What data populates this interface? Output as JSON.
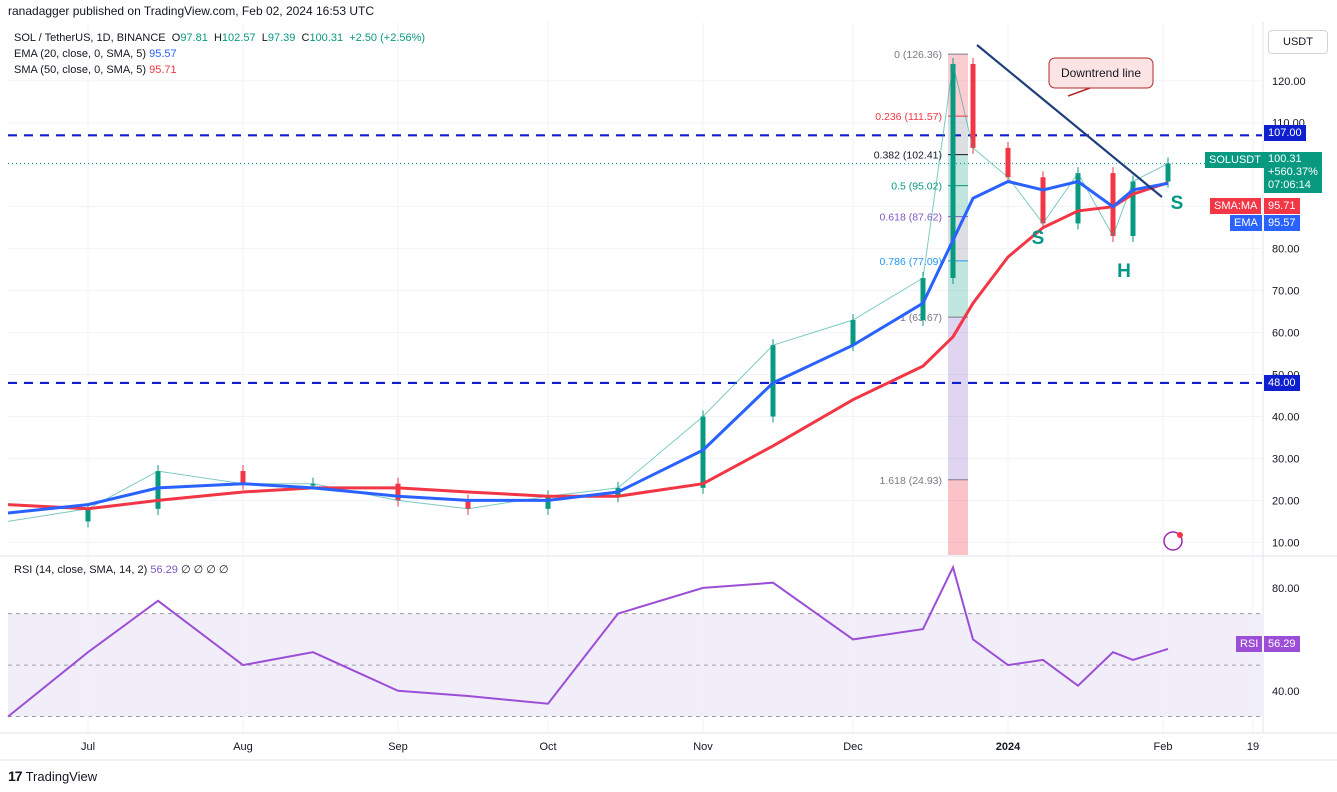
{
  "header": {
    "publisher_line": "ranadagger published on TradingView.com, Feb 02, 2024 16:53 UTC"
  },
  "legend": {
    "symbol_line": "SOL / TetherUS, 1D, BINANCE",
    "ohlc": {
      "o_label": "O",
      "o": "97.81",
      "h_label": "H",
      "h": "102.57",
      "l_label": "L",
      "l": "97.39",
      "c_label": "C",
      "c": "100.31",
      "chg": "+2.50 (+2.56%)"
    },
    "ema_label": "EMA (20, close, 0, SMA, 5)",
    "ema_value": "95.57",
    "sma_label": "SMA (50, close, 0, SMA, 5)",
    "sma_value": "95.71",
    "rsi_label": "RSI (14, close, SMA, 14, 2)",
    "rsi_value": "56.29",
    "rsi_extra": "∅ ∅ ∅ ∅"
  },
  "currency_button": "USDT",
  "price_tags": {
    "symbol_tag": "SOLUSDT",
    "last_price": "100.31",
    "change": "+560.37%",
    "countdown": "07:06:14",
    "sma_tag": "SMA:MA",
    "sma_val": "95.71",
    "ema_tag": "EMA",
    "ema_val": "95.57",
    "level_107": "107.00",
    "level_48": "48.00",
    "rsi_tag": "RSI",
    "rsi_val": "56.29"
  },
  "annotations": {
    "downtrend_label": "Downtrend line",
    "s_left": "S",
    "h": "H",
    "s_right": "S"
  },
  "fib_levels": [
    {
      "label": "0 (126.36)",
      "price": 126.36,
      "color": "#787b86"
    },
    {
      "label": "0.236 (111.57)",
      "price": 111.57,
      "color": "#f23645"
    },
    {
      "label": "0.382 (102.41)",
      "price": 102.41,
      "color": "#131722"
    },
    {
      "label": "0.5 (95.02)",
      "price": 95.02,
      "color": "#089981"
    },
    {
      "label": "0.618 (87.62)",
      "price": 87.62,
      "color": "#7e57c2"
    },
    {
      "label": "0.786 (77.09)",
      "price": 77.09,
      "color": "#2196f3"
    },
    {
      "label": "1 (63.67)",
      "price": 63.67,
      "color": "#787b86"
    },
    {
      "label": "1.618 (24.93)",
      "price": 24.93,
      "color": "#787b86"
    }
  ],
  "footer": {
    "brand": "TradingView",
    "logo": "17"
  },
  "colors": {
    "up": "#089981",
    "down": "#f23645",
    "ema": "#2962ff",
    "sma": "#f23645",
    "rsi": "#9c4fd6",
    "level": "#0d1fcf",
    "trend": "#1e3f7a"
  },
  "chart_data": {
    "type": "line",
    "title": "SOL / TetherUS, 1D, BINANCE",
    "x_ticks": [
      "Jul",
      "Aug",
      "Sep",
      "Oct",
      "Nov",
      "Dec",
      "2024",
      "Feb",
      "19"
    ],
    "y_ticks": [
      "10.00",
      "20.00",
      "30.00",
      "40.00",
      "50.00",
      "60.00",
      "70.00",
      "80.00",
      "90.00",
      "100.00",
      "110.00",
      "120.00"
    ],
    "rsi_ticks": [
      "40.00",
      "60.00",
      "80.00"
    ],
    "ylim": [
      7,
      134
    ],
    "rsi_ylim": [
      24,
      92
    ],
    "horizontal_levels": [
      107.0,
      48.0
    ],
    "x_dates": [
      "2024-06-15",
      "2024-07-01",
      "2024-07-15",
      "2024-08-01",
      "2024-08-15",
      "2024-09-01",
      "2024-09-15",
      "2024-10-01",
      "2024-10-15",
      "2024-11-01",
      "2024-11-15",
      "2024-12-01",
      "2024-12-15",
      "2024-12-21",
      "2024-12-25",
      "2025-01-01",
      "2025-01-08",
      "2025-01-15",
      "2025-01-22",
      "2025-01-26",
      "2025-02-02"
    ],
    "series": [
      {
        "name": "SOLUSDT",
        "values": [
          15,
          18,
          27,
          24,
          24,
          20,
          18,
          21,
          23,
          40,
          57,
          63,
          73,
          124,
          104,
          97,
          86,
          98,
          83,
          96,
          100.31
        ]
      },
      {
        "name": "EMA",
        "values": [
          17,
          19,
          23,
          24,
          23,
          21,
          20,
          20,
          22,
          32,
          48,
          57,
          67,
          82,
          92,
          96,
          94,
          96,
          90,
          94,
          95.57
        ]
      },
      {
        "name": "SMA",
        "values": [
          19,
          18,
          20,
          22,
          23,
          23,
          22,
          21,
          21,
          24,
          33,
          44,
          52,
          59,
          67,
          78,
          85,
          89,
          90,
          93,
          95.71
        ]
      },
      {
        "name": "RSI",
        "values": [
          30,
          55,
          75,
          50,
          55,
          40,
          38,
          35,
          70,
          80,
          82,
          60,
          64,
          88,
          60,
          50,
          52,
          42,
          55,
          52,
          56.29
        ]
      }
    ]
  }
}
